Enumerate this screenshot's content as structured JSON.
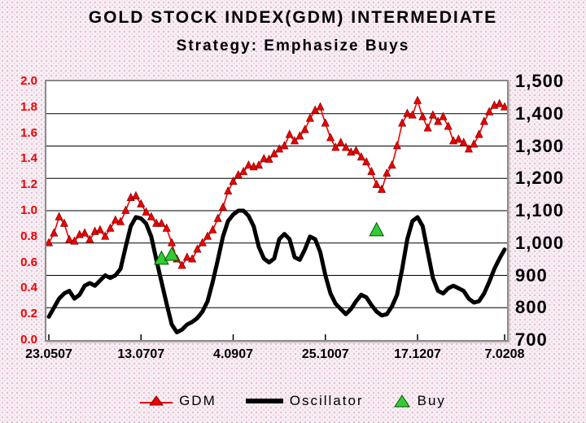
{
  "title": "GOLD STOCK INDEX(GDM)  INTERMEDIATE",
  "subtitle": "Strategy: Emphasize Buys",
  "legend": {
    "gdm_label": "GDM",
    "oscillator_label": "Oscillator",
    "buy_label": "Buy"
  },
  "chart_data": {
    "type": "line",
    "title": "GOLD STOCK INDEX(GDM)  INTERMEDIATE",
    "subtitle": "Strategy: Emphasize Buys",
    "legend_position": "bottom",
    "grid": "horizontal",
    "x_tick_labels": [
      "23.0507",
      "13.0707",
      "4.0907",
      "25.1007",
      "17.1207",
      "7.0208"
    ],
    "x_tick_indices": [
      0,
      18,
      36,
      54,
      72,
      89
    ],
    "left_axis": {
      "min": 0.0,
      "max": 2.0,
      "color": "#ee0000",
      "ticks": [
        "2.0",
        "1.8",
        "1.6",
        "1.4",
        "1.2",
        "1.0",
        "0.8",
        "0.6",
        "0.4",
        "0.2",
        "0.0"
      ]
    },
    "right_axis": {
      "min": 700,
      "max": 1500,
      "color": "#000000",
      "ticks": [
        "1,500",
        "1,400",
        "1,300",
        "1,200",
        "1,100",
        "1,000",
        "900",
        "800",
        "700"
      ]
    },
    "series": [
      {
        "name": "GDM",
        "axis": "right",
        "style": "line-with-triangle-markers",
        "color": "#ee0000",
        "values": [
          1000,
          1030,
          1080,
          1060,
          1010,
          1005,
          1025,
          1030,
          1010,
          1035,
          1040,
          1020,
          1045,
          1070,
          1065,
          1100,
          1140,
          1145,
          1120,
          1095,
          1080,
          1060,
          1060,
          1045,
          1000,
          950,
          930,
          955,
          950,
          980,
          1000,
          1020,
          1040,
          1075,
          1110,
          1160,
          1190,
          1210,
          1220,
          1240,
          1235,
          1240,
          1260,
          1258,
          1275,
          1290,
          1300,
          1335,
          1315,
          1330,
          1350,
          1385,
          1410,
          1420,
          1370,
          1325,
          1295,
          1310,
          1295,
          1280,
          1285,
          1265,
          1250,
          1220,
          1180,
          1165,
          1215,
          1240,
          1300,
          1370,
          1400,
          1395,
          1440,
          1390,
          1355,
          1395,
          1375,
          1390,
          1360,
          1315,
          1320,
          1310,
          1290,
          1305,
          1335,
          1375,
          1405,
          1425,
          1430,
          1420
        ]
      },
      {
        "name": "Oscillator",
        "axis": "left",
        "style": "thick-line",
        "color": "#000000",
        "line_width": 5,
        "values": [
          0.18,
          0.25,
          0.32,
          0.36,
          0.38,
          0.32,
          0.35,
          0.42,
          0.44,
          0.42,
          0.46,
          0.5,
          0.48,
          0.5,
          0.55,
          0.72,
          0.88,
          0.95,
          0.94,
          0.9,
          0.8,
          0.62,
          0.45,
          0.28,
          0.12,
          0.06,
          0.08,
          0.12,
          0.14,
          0.17,
          0.22,
          0.3,
          0.45,
          0.62,
          0.8,
          0.92,
          0.97,
          1.0,
          1.0,
          0.96,
          0.88,
          0.72,
          0.63,
          0.6,
          0.63,
          0.78,
          0.82,
          0.78,
          0.64,
          0.62,
          0.7,
          0.8,
          0.78,
          0.68,
          0.5,
          0.36,
          0.28,
          0.24,
          0.2,
          0.24,
          0.3,
          0.35,
          0.33,
          0.27,
          0.22,
          0.19,
          0.2,
          0.26,
          0.35,
          0.55,
          0.78,
          0.92,
          0.95,
          0.88,
          0.68,
          0.48,
          0.38,
          0.36,
          0.4,
          0.42,
          0.4,
          0.38,
          0.32,
          0.29,
          0.3,
          0.36,
          0.45,
          0.55,
          0.63,
          0.7
        ]
      }
    ],
    "buy_signals": {
      "name": "Buy",
      "axis": "left",
      "marker": "triangle",
      "color": "#33cc33",
      "points": [
        {
          "index": 22,
          "value": 0.63
        },
        {
          "index": 24,
          "value": 0.66
        },
        {
          "index": 64,
          "value": 0.85
        }
      ]
    }
  }
}
